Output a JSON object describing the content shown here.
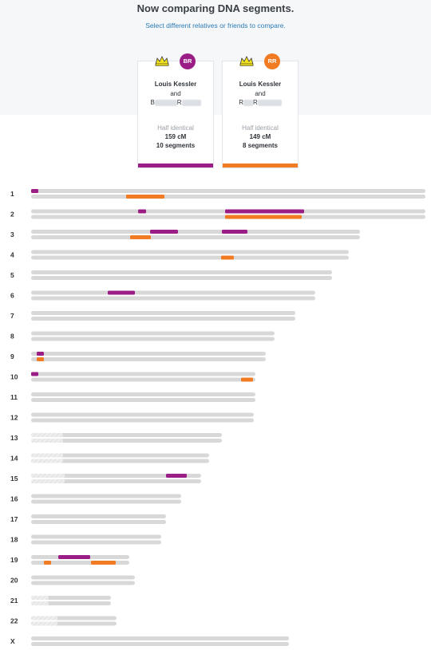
{
  "header": {
    "title": "Now comparing DNA segments.",
    "subtitle": "Select different relatives or friends to compare."
  },
  "colors": {
    "card1": "#9b1d86",
    "card2": "#f07b22",
    "bar": "#d8d8d8"
  },
  "cards": [
    {
      "avatar": "BR",
      "name": "Louis Kessler",
      "and": "and",
      "other_initial1": "B",
      "other_initial2": "R",
      "label": "Half identical",
      "cm": "159 cM",
      "segments": "10 segments"
    },
    {
      "avatar": "RR",
      "name": "Louis Kessler",
      "and": "and",
      "other_initial1": "R",
      "other_initial2": "R",
      "label": "Half identical",
      "cm": "149 cM",
      "segments": "8 segments"
    }
  ],
  "chromosomes": [
    {
      "label": "1",
      "length": 494,
      "masked": 0,
      "p1": [
        [
          0,
          9
        ]
      ],
      "p2": [
        [
          119,
          167
        ]
      ]
    },
    {
      "label": "2",
      "length": 494,
      "masked": 0,
      "p1": [
        [
          134,
          144
        ],
        [
          243,
          342
        ]
      ],
      "p2": [
        [
          243,
          339
        ]
      ]
    },
    {
      "label": "3",
      "length": 412,
      "masked": 0,
      "p1": [
        [
          149,
          184
        ],
        [
          239,
          271
        ]
      ],
      "p2": [
        [
          124,
          150
        ]
      ]
    },
    {
      "label": "4",
      "length": 398,
      "masked": 0,
      "p1": [],
      "p2": [
        [
          238,
          254
        ]
      ]
    },
    {
      "label": "5",
      "length": 377,
      "masked": 0,
      "p1": [],
      "p2": []
    },
    {
      "label": "6",
      "length": 356,
      "masked": 0,
      "p1": [
        [
          96,
          130
        ]
      ],
      "p2": []
    },
    {
      "label": "7",
      "length": 331,
      "masked": 0,
      "p1": [],
      "p2": []
    },
    {
      "label": "8",
      "length": 305,
      "masked": 0,
      "p1": [],
      "p2": []
    },
    {
      "label": "9",
      "length": 294,
      "masked": 0,
      "p1": [
        [
          7,
          16
        ]
      ],
      "p2": [
        [
          7,
          16
        ]
      ]
    },
    {
      "label": "10",
      "length": 281,
      "masked": 0,
      "p1": [
        [
          0,
          9
        ]
      ],
      "p2": [
        [
          263,
          278
        ]
      ]
    },
    {
      "label": "11",
      "length": 281,
      "masked": 0,
      "p1": [],
      "p2": []
    },
    {
      "label": "12",
      "length": 279,
      "masked": 0,
      "p1": [],
      "p2": []
    },
    {
      "label": "13",
      "length": 239,
      "masked": 40,
      "p1": [],
      "p2": []
    },
    {
      "label": "14",
      "length": 223,
      "masked": 40,
      "p1": [],
      "p2": []
    },
    {
      "label": "15",
      "length": 213,
      "masked": 42,
      "p1": [
        [
          169,
          195
        ]
      ],
      "p2": []
    },
    {
      "label": "16",
      "length": 188,
      "masked": 0,
      "p1": [],
      "p2": []
    },
    {
      "label": "17",
      "length": 169,
      "masked": 0,
      "p1": [],
      "p2": []
    },
    {
      "label": "18",
      "length": 163,
      "masked": 0,
      "p1": [],
      "p2": []
    },
    {
      "label": "19",
      "length": 123,
      "masked": 0,
      "p1": [
        [
          34,
          74
        ]
      ],
      "p2": [
        [
          16,
          25
        ],
        [
          75,
          106
        ]
      ]
    },
    {
      "label": "20",
      "length": 130,
      "masked": 0,
      "p1": [],
      "p2": []
    },
    {
      "label": "21",
      "length": 100,
      "masked": 22,
      "p1": [],
      "p2": []
    },
    {
      "label": "22",
      "length": 107,
      "masked": 33,
      "p1": [],
      "p2": []
    },
    {
      "label": "X",
      "length": 323,
      "masked": 0,
      "p1": [],
      "p2": []
    }
  ]
}
